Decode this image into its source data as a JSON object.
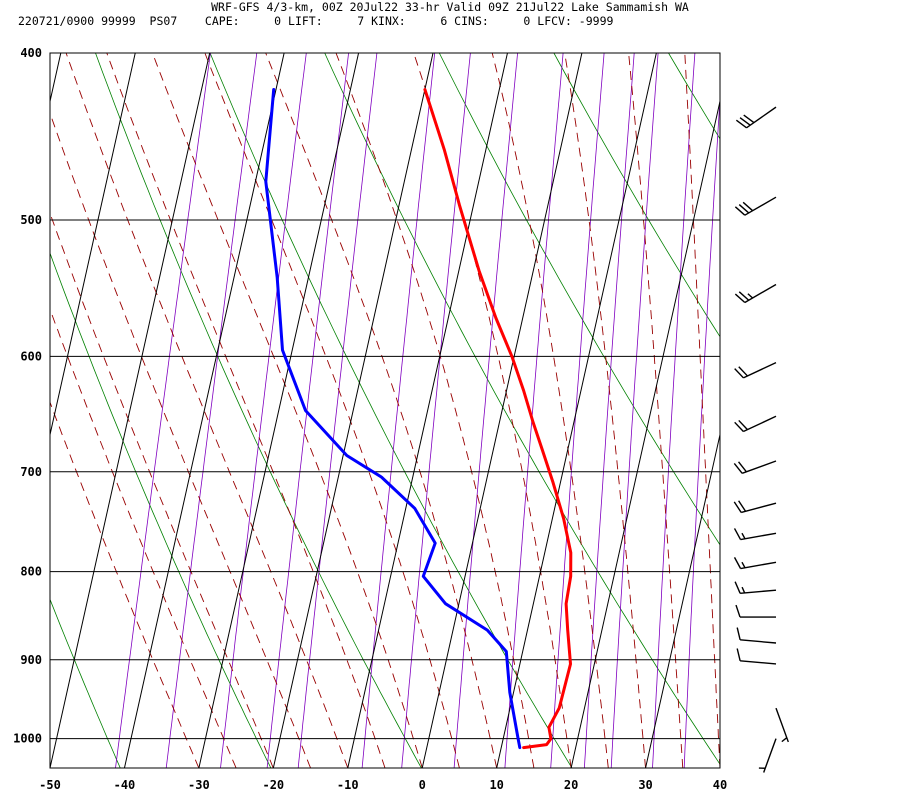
{
  "header": {
    "line1": "WRF-GFS 4/3-km, 00Z 20Jul22 33-hr Valid 09Z 21Jul22 Lake Sammamish WA",
    "line2": "220721/0900 99999  PS07    CAPE:     0 LIFT:     7 KINX:     6 CINS:     0 LFCV: -9999"
  },
  "chart_data": {
    "type": "line",
    "title": "WRF-GFS 4/3-km, 00Z 20Jul22 33-hr Valid 09Z 21Jul22 Lake Sammamish WA",
    "xlabel": "",
    "ylabel": "",
    "x_scale": "skew-T",
    "y_scale": "log-pressure",
    "xlim": [
      -50,
      40
    ],
    "ylim": [
      1040,
      400
    ],
    "x_ticks": [
      -50,
      -40,
      -30,
      -20,
      -10,
      0,
      10,
      20,
      30,
      40
    ],
    "y_ticks": [
      400,
      500,
      600,
      700,
      800,
      900,
      1000
    ],
    "grid": true,
    "colors": {
      "temperature": "#ff0000",
      "dewpoint": "#0000ff",
      "dry_adiabat": "#008000",
      "moist_adiabat": "#990000",
      "mixing_ratio": "#8000c0",
      "grid": "#000000"
    },
    "series": [
      {
        "key": "temperature",
        "x": [
          -20,
          -15.6,
          -11.9,
          -7.3,
          -3.6,
          -0.3,
          2.3,
          4.5,
          6.6,
          9.0,
          11.5,
          13.5,
          14.2,
          14.4,
          15.4,
          16.8,
          16.6,
          15.8,
          16.4,
          16.0,
          13.0
        ],
        "y": [
          420,
          455,
          490,
          535,
          570,
          600,
          628,
          655,
          680,
          710,
          745,
          780,
          805,
          835,
          865,
          905,
          960,
          985,
          1000,
          1008,
          1012
        ]
      },
      {
        "key": "dewpoint",
        "x": [
          -40.3,
          -38.6,
          -34.2,
          -31.3,
          -26.4,
          -19.5,
          -14.2,
          -8.8,
          -5.0,
          -5.6,
          -1.8,
          4.6,
          7.8,
          9.5,
          12.0,
          12.5
        ],
        "y": [
          420,
          475,
          540,
          595,
          645,
          685,
          705,
          735,
          770,
          805,
          835,
          865,
          890,
          940,
          1000,
          1012
        ]
      }
    ],
    "wind_barbs": {
      "p": [
        430,
        485,
        545,
        605,
        650,
        690,
        730,
        760,
        790,
        820,
        850,
        880,
        905,
        960,
        1000
      ],
      "speed_kt": [
        30,
        30,
        25,
        20,
        20,
        20,
        20,
        15,
        15,
        15,
        10,
        10,
        10,
        5,
        5
      ],
      "direction_deg": [
        235,
        240,
        240,
        245,
        245,
        250,
        255,
        260,
        260,
        265,
        270,
        275,
        275,
        160,
        200
      ]
    }
  }
}
